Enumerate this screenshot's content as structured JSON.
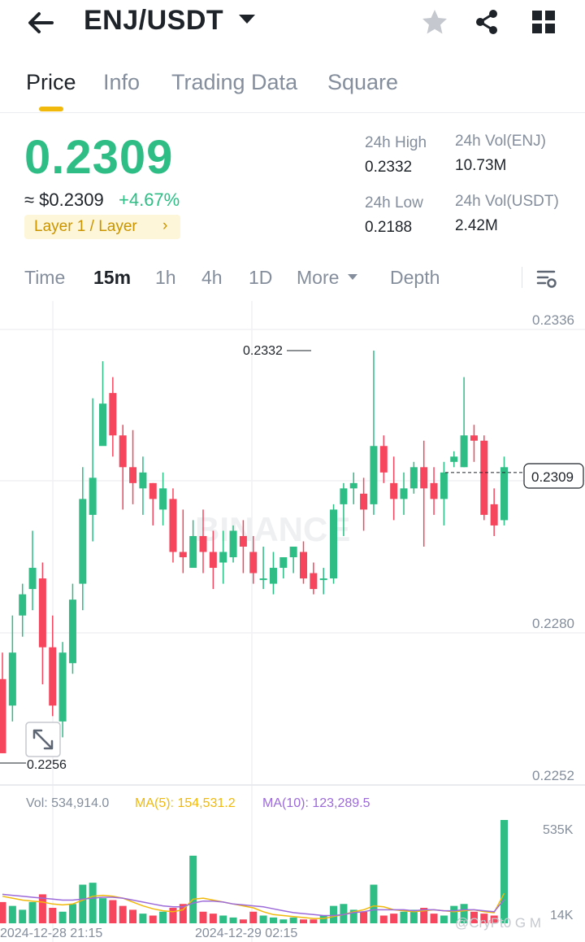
{
  "header": {
    "pair": "ENJ/USDT",
    "icons": {
      "back": "arrow-left-icon",
      "favorite": "star-icon",
      "share": "share-icon",
      "menu": "grid-icon"
    }
  },
  "tabs": [
    {
      "label": "Price",
      "active": true
    },
    {
      "label": "Info",
      "active": false
    },
    {
      "label": "Trading Data",
      "active": false
    },
    {
      "label": "Square",
      "active": false
    }
  ],
  "ticker": {
    "price": "0.2309",
    "fiat": "≈ $0.2309",
    "change": "+4.67%",
    "tag": "Layer 1 / Layer",
    "tag_chevron": "›"
  },
  "stats": {
    "high_label": "24h High",
    "high": "0.2332",
    "low_label": "24h Low",
    "low": "0.2188",
    "vol_base_label": "24h Vol(ENJ)",
    "vol_base": "10.73M",
    "vol_quote_label": "24h Vol(USDT)",
    "vol_quote": "2.42M"
  },
  "timeframes": [
    {
      "label": "Time",
      "active": false
    },
    {
      "label": "15m",
      "active": true
    },
    {
      "label": "1h",
      "active": false
    },
    {
      "label": "4h",
      "active": false
    },
    {
      "label": "1D",
      "active": false
    },
    {
      "label": "More",
      "active": false
    },
    {
      "label": "Depth",
      "active": false
    }
  ],
  "colors": {
    "up": "#2ebd85",
    "down": "#f6465d",
    "accent": "#f0b90b",
    "ma5": "#f0b90b",
    "ma10": "#9c6ad9"
  },
  "chart_data": {
    "type": "candlestick",
    "price_axis": [
      "0.2336",
      "0.2280",
      "0.2252"
    ],
    "y_range": [
      0.2252,
      0.2336
    ],
    "last_price": "0.2309",
    "high_marker": "0.2332",
    "low_marker": "0.2256",
    "time_labels": [
      "2024-12-28 21:15",
      "2024-12-29 02:15"
    ],
    "watermark": "BINANCE",
    "candles": [
      [
        0.227,
        0.2256,
        0.2275,
        0.2256
      ],
      [
        0.2265,
        0.2275,
        0.2282,
        0.2262
      ],
      [
        0.2282,
        0.2286,
        0.2288,
        0.2278
      ],
      [
        0.2287,
        0.2291,
        0.2298,
        0.2283
      ],
      [
        0.2289,
        0.2276,
        0.2292,
        0.2269
      ],
      [
        0.2276,
        0.2265,
        0.2282,
        0.2263
      ],
      [
        0.2262,
        0.2275,
        0.2277,
        0.2259
      ],
      [
        0.2273,
        0.2285,
        0.2288,
        0.2271
      ],
      [
        0.2288,
        0.2304,
        0.231,
        0.2283
      ],
      [
        0.2301,
        0.2308,
        0.2323,
        0.2296
      ],
      [
        0.2314,
        0.2322,
        0.233,
        0.2315
      ],
      [
        0.2324,
        0.2316,
        0.2327,
        0.2312
      ],
      [
        0.2316,
        0.231,
        0.2318,
        0.2302
      ],
      [
        0.231,
        0.2307,
        0.2317,
        0.2303
      ],
      [
        0.2306,
        0.2309,
        0.2312,
        0.2301
      ],
      [
        0.2307,
        0.2304,
        0.2307,
        0.2299
      ],
      [
        0.2302,
        0.2306,
        0.2309,
        0.2299
      ],
      [
        0.2304,
        0.2294,
        0.2306,
        0.2292
      ],
      [
        0.2294,
        0.2293,
        0.2302,
        0.229
      ],
      [
        0.2291,
        0.2297,
        0.23,
        0.2293
      ],
      [
        0.2297,
        0.2294,
        0.2302,
        0.229
      ],
      [
        0.2294,
        0.2291,
        0.2298,
        0.2287
      ],
      [
        0.2292,
        0.2294,
        0.2298,
        0.2288
      ],
      [
        0.2293,
        0.2298,
        0.2299,
        0.2292
      ],
      [
        0.2297,
        0.2295,
        0.23,
        0.229
      ],
      [
        0.2294,
        0.229,
        0.2297,
        0.2288
      ],
      [
        0.2289,
        0.2289,
        0.2295,
        0.2287
      ],
      [
        0.2288,
        0.2291,
        0.2294,
        0.2286
      ],
      [
        0.2291,
        0.2293,
        0.2293,
        0.2289
      ],
      [
        0.2293,
        0.2295,
        0.2295,
        0.229
      ],
      [
        0.2294,
        0.2289,
        0.2296,
        0.2288
      ],
      [
        0.229,
        0.2287,
        0.2292,
        0.2286
      ],
      [
        0.2289,
        0.2289,
        0.2291,
        0.2286
      ],
      [
        0.2289,
        0.2302,
        0.2303,
        0.2288
      ],
      [
        0.2303,
        0.2306,
        0.2307,
        0.2297
      ],
      [
        0.2306,
        0.2307,
        0.2309,
        0.2303
      ],
      [
        0.2305,
        0.2302,
        0.2308,
        0.2298
      ],
      [
        0.2303,
        0.2314,
        0.2332,
        0.2301
      ],
      [
        0.2314,
        0.2309,
        0.2316,
        0.2307
      ],
      [
        0.2307,
        0.2304,
        0.2312,
        0.23
      ],
      [
        0.2304,
        0.2306,
        0.2309,
        0.2301
      ],
      [
        0.2306,
        0.231,
        0.2311,
        0.2305
      ],
      [
        0.231,
        0.2306,
        0.2315,
        0.2295
      ],
      [
        0.2307,
        0.2304,
        0.231,
        0.2301
      ],
      [
        0.2304,
        0.2309,
        0.2311,
        0.2299
      ],
      [
        0.2311,
        0.2312,
        0.2313,
        0.231
      ],
      [
        0.231,
        0.2316,
        0.2327,
        0.231
      ],
      [
        0.2316,
        0.2315,
        0.2318,
        0.2311
      ],
      [
        0.2315,
        0.2301,
        0.2316,
        0.23
      ],
      [
        0.2303,
        0.2299,
        0.2306,
        0.2297
      ],
      [
        0.23,
        0.231,
        0.2312,
        0.2299
      ]
    ],
    "volume": {
      "label": "Vol: 534,914.0",
      "ma5_label": "MA(5): 154,531.2",
      "ma10_label": "MA(10): 123,289.5",
      "axis_top": "535K",
      "axis_bottom": "14K",
      "bars": [
        110,
        90,
        70,
        110,
        150,
        80,
        60,
        100,
        200,
        210,
        130,
        120,
        90,
        70,
        50,
        40,
        60,
        80,
        100,
        350,
        60,
        50,
        40,
        30,
        20,
        60,
        40,
        30,
        20,
        30,
        20,
        20,
        40,
        90,
        100,
        70,
        60,
        200,
        40,
        50,
        60,
        70,
        80,
        50,
        40,
        90,
        100,
        60,
        50,
        40,
        535
      ],
      "ma5": [
        140,
        130,
        120,
        115,
        110,
        100,
        95,
        100,
        120,
        140,
        145,
        140,
        130,
        110,
        90,
        75,
        65,
        60,
        70,
        125,
        130,
        120,
        110,
        100,
        90,
        80,
        60,
        45,
        40,
        35,
        30,
        25,
        25,
        35,
        45,
        60,
        70,
        90,
        85,
        70,
        65,
        60,
        65,
        70,
        65,
        60,
        65,
        70,
        60,
        55,
        155
      ],
      "ma10": [
        150,
        145,
        140,
        135,
        130,
        125,
        120,
        120,
        125,
        130,
        135,
        135,
        130,
        120,
        110,
        100,
        90,
        85,
        85,
        105,
        115,
        115,
        110,
        100,
        95,
        90,
        85,
        75,
        65,
        55,
        50,
        45,
        40,
        40,
        45,
        55,
        60,
        70,
        70,
        70,
        70,
        65,
        70,
        70,
        65,
        65,
        70,
        70,
        65,
        60,
        123
      ]
    }
  },
  "watermark_user": "@CryPt0 G M"
}
